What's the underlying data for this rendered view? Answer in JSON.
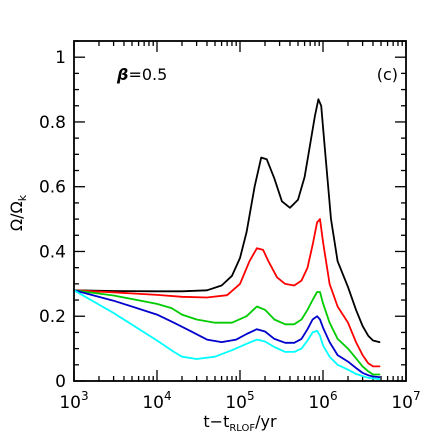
{
  "chart_data": {
    "type": "line",
    "title": "",
    "xlabel": "t−t",
    "xlabel_sub": "RLOF",
    "xlabel_tail": "/yr",
    "ylabel": "Ω/Ω",
    "ylabel_sub": "k",
    "xscale": "log",
    "xlim": [
      1000,
      10000000
    ],
    "ylim": [
      0,
      1.05
    ],
    "grid": false,
    "x_ticks": [
      {
        "value": 1000,
        "base": "10",
        "exp": "3"
      },
      {
        "value": 10000,
        "base": "10",
        "exp": "4"
      },
      {
        "value": 100000,
        "base": "10",
        "exp": "5"
      },
      {
        "value": 1000000,
        "base": "10",
        "exp": "6"
      },
      {
        "value": 10000000,
        "base": "10",
        "exp": "7"
      }
    ],
    "y_ticks": [
      {
        "value": 0,
        "label": "0"
      },
      {
        "value": 0.2,
        "label": "0.2"
      },
      {
        "value": 0.4,
        "label": "0.4"
      },
      {
        "value": 0.6,
        "label": "0.6"
      },
      {
        "value": 0.8,
        "label": "0.8"
      },
      {
        "value": 1,
        "label": "1"
      }
    ],
    "annotations": {
      "beta": {
        "symbol": "β",
        "text": "=0.5"
      },
      "panel": "(c)"
    },
    "series": [
      {
        "color": "#000000",
        "x": [
          1000,
          3000,
          10000,
          20000,
          40000,
          60000,
          80000,
          100000,
          120000,
          150000,
          180000,
          210000,
          260000,
          320000,
          400000,
          500000,
          600000,
          700000,
          800000,
          880000,
          950000,
          1050000,
          1250000,
          1500000,
          2000000,
          2500000,
          3000000,
          3500000,
          4000000,
          4800000
        ],
        "y": [
          0.28,
          0.278,
          0.277,
          0.277,
          0.28,
          0.295,
          0.325,
          0.38,
          0.46,
          0.6,
          0.69,
          0.685,
          0.625,
          0.555,
          0.535,
          0.56,
          0.63,
          0.73,
          0.82,
          0.87,
          0.85,
          0.72,
          0.5,
          0.37,
          0.29,
          0.22,
          0.17,
          0.14,
          0.125,
          0.12
        ]
      },
      {
        "color": "#ff0000",
        "x": [
          1000,
          3000,
          10000,
          20000,
          40000,
          70000,
          100000,
          130000,
          160000,
          190000,
          220000,
          280000,
          350000,
          450000,
          550000,
          650000,
          750000,
          850000,
          920000,
          1000000,
          1200000,
          1500000,
          2000000,
          2500000,
          3000000,
          3500000,
          4000000,
          4800000
        ],
        "y": [
          0.28,
          0.274,
          0.266,
          0.26,
          0.258,
          0.265,
          0.3,
          0.37,
          0.41,
          0.405,
          0.37,
          0.32,
          0.3,
          0.295,
          0.31,
          0.35,
          0.42,
          0.49,
          0.5,
          0.43,
          0.3,
          0.23,
          0.18,
          0.12,
          0.08,
          0.055,
          0.045,
          0.045
        ]
      },
      {
        "color": "#00cc00",
        "x": [
          1000,
          3000,
          10000,
          15000,
          20000,
          30000,
          50000,
          80000,
          120000,
          160000,
          200000,
          260000,
          350000,
          450000,
          550000,
          650000,
          750000,
          850000,
          920000,
          1000000,
          1200000,
          1500000,
          2000000,
          2500000,
          3000000,
          3500000,
          4000000,
          4800000
        ],
        "y": [
          0.28,
          0.264,
          0.238,
          0.225,
          0.205,
          0.19,
          0.18,
          0.18,
          0.2,
          0.23,
          0.22,
          0.19,
          0.175,
          0.175,
          0.19,
          0.22,
          0.25,
          0.275,
          0.275,
          0.24,
          0.18,
          0.13,
          0.1,
          0.07,
          0.045,
          0.03,
          0.02,
          0.02
        ]
      },
      {
        "color": "#0000cc",
        "x": [
          1000,
          3000,
          10000,
          16000,
          25000,
          40000,
          60000,
          90000,
          120000,
          160000,
          200000,
          260000,
          350000,
          450000,
          550000,
          650000,
          750000,
          850000,
          920000,
          1000000,
          1200000,
          1500000,
          2000000,
          2500000,
          3000000,
          3500000,
          4000000,
          4800000
        ],
        "y": [
          0.28,
          0.248,
          0.205,
          0.18,
          0.155,
          0.128,
          0.12,
          0.128,
          0.145,
          0.16,
          0.153,
          0.13,
          0.118,
          0.118,
          0.13,
          0.16,
          0.19,
          0.2,
          0.19,
          0.165,
          0.12,
          0.08,
          0.06,
          0.04,
          0.025,
          0.018,
          0.014,
          0.012
        ]
      },
      {
        "color": "#00ffff",
        "x": [
          1000,
          3000,
          10000,
          16000,
          20000,
          30000,
          50000,
          80000,
          120000,
          160000,
          200000,
          260000,
          350000,
          450000,
          550000,
          650000,
          750000,
          850000,
          920000,
          1000000,
          1200000,
          1500000,
          2000000,
          2500000,
          3000000,
          3500000,
          4000000,
          4800000
        ],
        "y": [
          0.28,
          0.21,
          0.125,
          0.09,
          0.075,
          0.068,
          0.075,
          0.095,
          0.115,
          0.128,
          0.122,
          0.105,
          0.09,
          0.09,
          0.1,
          0.125,
          0.15,
          0.155,
          0.14,
          0.11,
          0.075,
          0.05,
          0.035,
          0.022,
          0.015,
          0.01,
          0.008,
          0.006
        ]
      }
    ]
  }
}
